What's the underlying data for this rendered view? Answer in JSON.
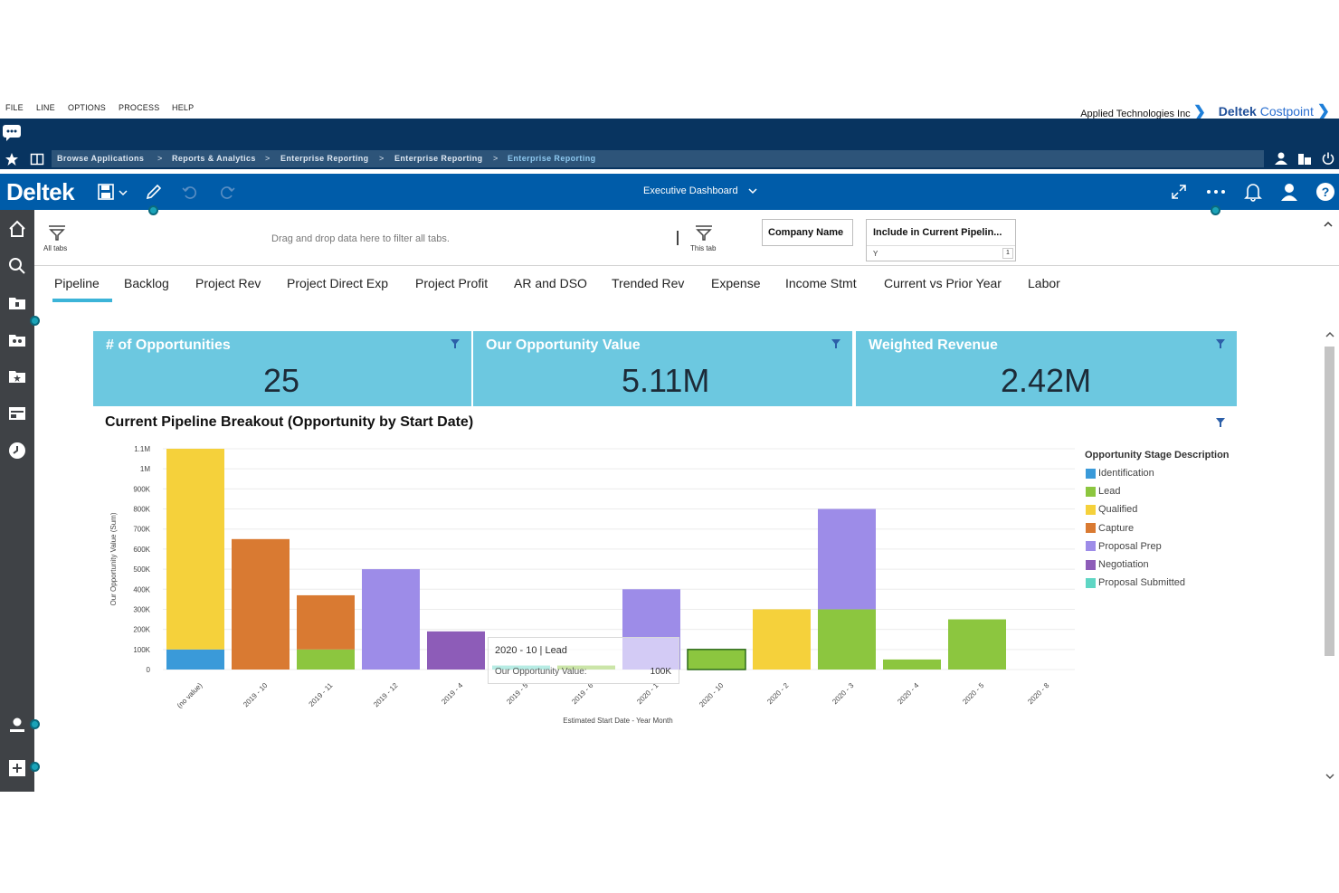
{
  "menu": {
    "items": [
      "FILE",
      "LINE",
      "OPTIONS",
      "PROCESS",
      "HELP"
    ]
  },
  "company": "Applied Technologies Inc",
  "brand": {
    "name_bold": "Deltek",
    "name_rest": "Costpoint"
  },
  "breadcrumb": [
    "Browse Applications",
    "Reports & Analytics",
    "Enterprise Reporting",
    "Enterprise Reporting",
    "Enterprise Reporting"
  ],
  "appbar": {
    "logo": "Deltek",
    "title": "Executive Dashboard"
  },
  "filters": {
    "all_tabs_label": "All tabs",
    "drop_hint": "Drag and drop data here to filter all tabs.",
    "this_tab_label": "This tab",
    "chip1": "Company Name",
    "chip2": "Include in Current Pipelin...",
    "chip2_value": "Y",
    "chip2_count": "1"
  },
  "tabs": [
    "Pipeline",
    "Backlog",
    "Project Rev",
    "Project Direct Exp",
    "Project Profit",
    "AR and DSO",
    "Trended Rev",
    "Expense",
    "Income Stmt",
    "Current vs Prior Year",
    "Labor"
  ],
  "kpis": [
    {
      "title": "# of Opportunities",
      "value": "25"
    },
    {
      "title": "Our Opportunity Value",
      "value": "5.11M"
    },
    {
      "title": "Weighted Revenue",
      "value": "2.42M"
    }
  ],
  "tooltip": {
    "header": "2020 - 10 | Lead",
    "label": "Our Opportunity Value:",
    "value": "100K"
  },
  "chart_data": {
    "type": "bar",
    "title": "Current Pipeline Breakout (Opportunity by Start Date)",
    "xlabel": "Estimated Start Date - Year Month",
    "ylabel": "Our Opportunity Value (Sum)",
    "ylim": [
      0,
      1100000
    ],
    "yticks": [
      "0",
      "100K",
      "200K",
      "300K",
      "400K",
      "500K",
      "600K",
      "700K",
      "800K",
      "900K",
      "1M",
      "1.1M"
    ],
    "stacked": true,
    "categories": [
      "(no value)",
      "2019 - 10",
      "2019 - 11",
      "2019 - 12",
      "2019 - 4",
      "2019 - 5",
      "2019 - 6",
      "2020 - 1",
      "2020 - 10",
      "2020 - 2",
      "2020 - 3",
      "2020 - 4",
      "2020 - 5",
      "2020 - 8"
    ],
    "legend_title": "Opportunity Stage Description",
    "legend_position": "right",
    "series": [
      {
        "name": "Identification",
        "color": "#3a9ad9",
        "values": [
          100000,
          0,
          0,
          0,
          0,
          0,
          0,
          0,
          0,
          0,
          0,
          0,
          0,
          0
        ]
      },
      {
        "name": "Lead",
        "color": "#8cc63f",
        "values": [
          0,
          0,
          100000,
          0,
          0,
          0,
          20000,
          0,
          100000,
          0,
          300000,
          50000,
          250000,
          0
        ]
      },
      {
        "name": "Qualified",
        "color": "#f5d13b",
        "values": [
          1000000,
          0,
          0,
          0,
          0,
          0,
          0,
          0,
          0,
          300000,
          0,
          0,
          0,
          0
        ]
      },
      {
        "name": "Capture",
        "color": "#d97a32",
        "values": [
          0,
          650000,
          270000,
          0,
          0,
          0,
          0,
          0,
          0,
          0,
          0,
          0,
          0,
          0
        ]
      },
      {
        "name": "Proposal Prep",
        "color": "#9d8ce8",
        "values": [
          0,
          0,
          0,
          500000,
          0,
          0,
          0,
          400000,
          0,
          0,
          500000,
          0,
          0,
          0
        ]
      },
      {
        "name": "Negotiation",
        "color": "#8d5cb8",
        "values": [
          0,
          0,
          0,
          0,
          190000,
          0,
          0,
          0,
          0,
          0,
          0,
          0,
          0,
          0
        ]
      },
      {
        "name": "Proposal Submitted",
        "color": "#5fd6c4",
        "values": [
          0,
          0,
          0,
          0,
          0,
          20000,
          0,
          0,
          0,
          0,
          0,
          0,
          0,
          0
        ]
      }
    ]
  }
}
